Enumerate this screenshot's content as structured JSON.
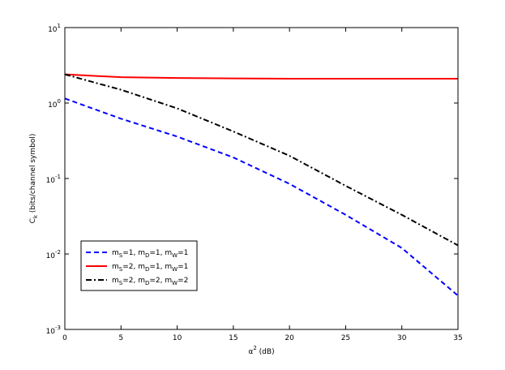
{
  "chart_data": {
    "type": "line",
    "xlabel": "α^{2} (dB)",
    "ylabel": "C_{k} (bits/channel symbol)",
    "x": [
      0,
      5,
      10,
      15,
      20,
      25,
      30,
      35
    ],
    "series": [
      {
        "name": "m_{S}=1, m_{D}=1, m_{W}=1",
        "color": "#0000ff",
        "linestyle": "dashed",
        "values": [
          1.15,
          0.62,
          0.36,
          0.19,
          0.085,
          0.033,
          0.012,
          0.0028
        ]
      },
      {
        "name": "m_{S}=2, m_{D}=1, m_{W}=1",
        "color": "#ff0000",
        "linestyle": "solid",
        "values": [
          2.4,
          2.2,
          2.15,
          2.12,
          2.1,
          2.1,
          2.1,
          2.1
        ]
      },
      {
        "name": "m_{S}=2, m_{D}=2, m_{W}=2",
        "color": "#000000",
        "linestyle": "dashdot",
        "values": [
          2.4,
          1.5,
          0.85,
          0.42,
          0.2,
          0.08,
          0.033,
          0.013
        ]
      }
    ],
    "xlim": [
      0,
      35
    ],
    "xticks": [
      0,
      5,
      10,
      15,
      20,
      25,
      30,
      35
    ],
    "ylim": [
      0.001,
      10
    ],
    "yscale": "log",
    "yticks": [
      {
        "value": 0.001,
        "label": "10^{-3}"
      },
      {
        "value": 0.01,
        "label": "10^{-2}"
      },
      {
        "value": 0.1,
        "label": "10^{-1}"
      },
      {
        "value": 1,
        "label": "10^{0}"
      },
      {
        "value": 10,
        "label": "10^{1}"
      }
    ],
    "legend": "lower left"
  }
}
